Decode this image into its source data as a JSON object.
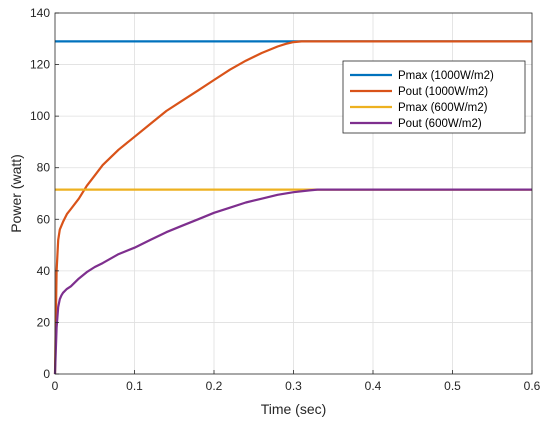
{
  "chart_data": {
    "type": "line",
    "title": "",
    "xlabel": "Time (sec)",
    "ylabel": "Power (watt)",
    "xlim": [
      0,
      0.6
    ],
    "ylim": [
      0,
      140
    ],
    "xticks": [
      0,
      0.1,
      0.2,
      0.3,
      0.4,
      0.5,
      0.6
    ],
    "xtick_labels": [
      "0",
      "0.1",
      "0.2",
      "0.3",
      "0.4",
      "0.5",
      "0.6"
    ],
    "yticks": [
      0,
      20,
      40,
      60,
      80,
      100,
      120,
      140
    ],
    "ytick_labels": [
      "0",
      "20",
      "40",
      "60",
      "80",
      "100",
      "120",
      "140"
    ],
    "grid": true,
    "legend_position": "upper-right",
    "series": [
      {
        "name": "Pmax (1000W/m2)",
        "color": "#0072BD",
        "x": [
          0,
          0.6
        ],
        "y": [
          129,
          129
        ]
      },
      {
        "name": "Pout (1000W/m2)",
        "color": "#D95319",
        "x": [
          0,
          0.002,
          0.004,
          0.006,
          0.01,
          0.015,
          0.02,
          0.03,
          0.04,
          0.05,
          0.06,
          0.08,
          0.1,
          0.12,
          0.14,
          0.16,
          0.18,
          0.2,
          0.22,
          0.24,
          0.26,
          0.28,
          0.29,
          0.3,
          0.31,
          0.32,
          0.35,
          0.4,
          0.45,
          0.5,
          0.55,
          0.6
        ],
        "y": [
          0,
          40,
          52,
          56,
          59,
          62,
          64,
          68,
          73,
          77,
          81,
          87,
          92,
          97,
          102,
          106,
          110,
          114,
          118,
          121.5,
          124.5,
          127,
          128,
          128.7,
          129,
          129,
          129,
          129,
          129,
          129,
          129,
          129
        ]
      },
      {
        "name": "Pmax (600W/m2)",
        "color": "#EDB120",
        "x": [
          0,
          0.6
        ],
        "y": [
          71.5,
          71.5
        ]
      },
      {
        "name": "Pout (600W/m2)",
        "color": "#7E2F8E",
        "x": [
          0,
          0.002,
          0.004,
          0.006,
          0.008,
          0.01,
          0.015,
          0.02,
          0.03,
          0.04,
          0.05,
          0.06,
          0.08,
          0.1,
          0.12,
          0.14,
          0.16,
          0.18,
          0.2,
          0.22,
          0.24,
          0.26,
          0.28,
          0.3,
          0.32,
          0.33,
          0.34,
          0.36,
          0.4,
          0.45,
          0.5,
          0.55,
          0.6
        ],
        "y": [
          0,
          18,
          26,
          29,
          30.5,
          31.5,
          33,
          34,
          37,
          39.5,
          41.5,
          43,
          46.5,
          49,
          52,
          55,
          57.5,
          60,
          62.5,
          64.5,
          66.5,
          68,
          69.5,
          70.5,
          71.2,
          71.5,
          71.5,
          71.5,
          71.5,
          71.5,
          71.5,
          71.5,
          71.5
        ]
      }
    ]
  }
}
